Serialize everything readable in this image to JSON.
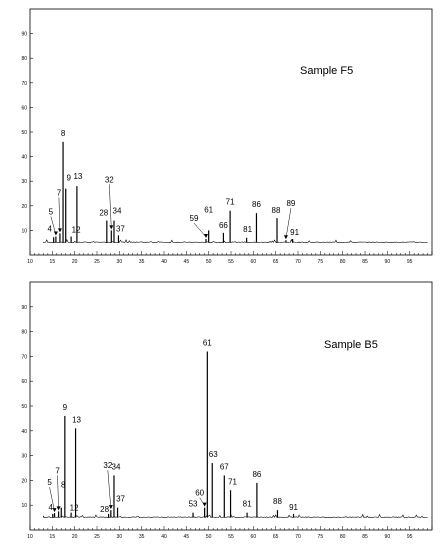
{
  "chart_data": [
    {
      "type": "line",
      "title": "Sample F5",
      "xlim": [
        10,
        100
      ],
      "ylim": [
        0,
        100
      ],
      "x_ticks": [
        10,
        15,
        20,
        25,
        30,
        35,
        40,
        45,
        50,
        55,
        60,
        65,
        70,
        75,
        80,
        85,
        90,
        95
      ],
      "y_ticks": [
        10,
        20,
        30,
        40,
        50,
        60,
        70,
        80,
        90
      ],
      "baseline": 5,
      "grid": false,
      "peaks": [
        {
          "label": "4",
          "x": 15.3,
          "y": 7.2
        },
        {
          "label": "5",
          "x": 15.8,
          "y": 7.5
        },
        {
          "label": "7",
          "x": 16.7,
          "y": 8.8
        },
        {
          "label": "8",
          "x": 17.4,
          "y": 46
        },
        {
          "label": "9",
          "x": 18.0,
          "y": 27
        },
        {
          "label": "12",
          "x": 19.2,
          "y": 7.5
        },
        {
          "label": "13",
          "x": 20.5,
          "y": 28
        },
        {
          "label": "28",
          "x": 27.2,
          "y": 14
        },
        {
          "label": "32",
          "x": 28.2,
          "y": 10
        },
        {
          "label": "34",
          "x": 28.8,
          "y": 14
        },
        {
          "label": "37",
          "x": 29.8,
          "y": 8
        },
        {
          "label": "59",
          "x": 49.4,
          "y": 6.5
        },
        {
          "label": "61",
          "x": 50.0,
          "y": 10
        },
        {
          "label": "66",
          "x": 53.3,
          "y": 9
        },
        {
          "label": "71",
          "x": 54.8,
          "y": 18
        },
        {
          "label": "81",
          "x": 58.5,
          "y": 7
        },
        {
          "label": "86",
          "x": 60.7,
          "y": 17
        },
        {
          "label": "88",
          "x": 65.3,
          "y": 15
        },
        {
          "label": "89",
          "x": 67.3,
          "y": 6
        },
        {
          "label": "91",
          "x": 68.8,
          "y": 6.5
        }
      ]
    },
    {
      "type": "line",
      "title": "Sample B5",
      "xlim": [
        10,
        100
      ],
      "ylim": [
        0,
        100
      ],
      "x_ticks": [
        10,
        15,
        20,
        25,
        30,
        35,
        40,
        45,
        50,
        55,
        60,
        65,
        70,
        75,
        80,
        85,
        90,
        95
      ],
      "y_ticks": [
        10,
        20,
        30,
        40,
        50,
        60,
        70,
        80,
        90
      ],
      "baseline": 5,
      "grid": false,
      "peaks": [
        {
          "label": "4",
          "x": 15.1,
          "y": 6.5
        },
        {
          "label": "5",
          "x": 15.5,
          "y": 6.8
        },
        {
          "label": "7",
          "x": 16.4,
          "y": 7.5
        },
        {
          "label": "8",
          "x": 17.0,
          "y": 9
        },
        {
          "label": "9",
          "x": 17.8,
          "y": 46
        },
        {
          "label": "12",
          "x": 19.2,
          "y": 7
        },
        {
          "label": "13",
          "x": 20.2,
          "y": 41
        },
        {
          "label": "28",
          "x": 27.6,
          "y": 6.5
        },
        {
          "label": "32",
          "x": 28.1,
          "y": 8
        },
        {
          "label": "34",
          "x": 28.8,
          "y": 22
        },
        {
          "label": "37",
          "x": 29.6,
          "y": 9
        },
        {
          "label": "53",
          "x": 46.5,
          "y": 7
        },
        {
          "label": "60",
          "x": 49.1,
          "y": 9
        },
        {
          "label": "61",
          "x": 49.7,
          "y": 72
        },
        {
          "label": "63",
          "x": 50.8,
          "y": 27
        },
        {
          "label": "67",
          "x": 53.5,
          "y": 22
        },
        {
          "label": "71",
          "x": 54.9,
          "y": 16
        },
        {
          "label": "81",
          "x": 58.6,
          "y": 7
        },
        {
          "label": "86",
          "x": 60.8,
          "y": 19
        },
        {
          "label": "88",
          "x": 65.4,
          "y": 8
        },
        {
          "label": "91",
          "x": 69.0,
          "y": 6.5
        }
      ]
    }
  ]
}
